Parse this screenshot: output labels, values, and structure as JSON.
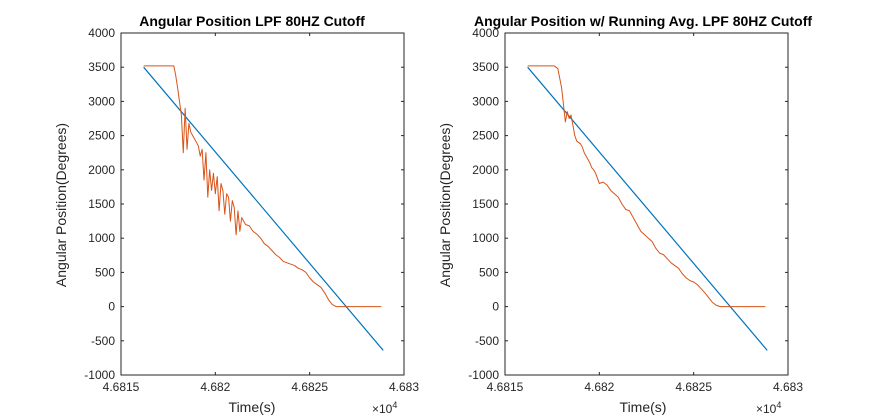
{
  "figure": {
    "colors": {
      "background": "#ffffff",
      "axes": "#262626",
      "series_1": "#0072BD",
      "series_2": "#D95319"
    }
  },
  "chart_data": [
    {
      "type": "line",
      "title": "Angular Position LPF 80HZ Cutoff",
      "xlabel": "Time(s)",
      "ylabel": "Angular Position(Degrees)",
      "x_exponent_label": "×10",
      "x_exponent_power": "4",
      "xlim": [
        4.6815,
        4.683
      ],
      "ylim": [
        -1000,
        4000
      ],
      "xticks": [
        4.6815,
        4.682,
        4.6825,
        4.683
      ],
      "xtick_labels": [
        "4.6815",
        "4.682",
        "4.6825",
        "4.683"
      ],
      "yticks": [
        -1000,
        -500,
        0,
        500,
        1000,
        1500,
        2000,
        2500,
        3000,
        3500,
        4000
      ],
      "ytick_labels": [
        "-1000",
        "-500",
        "0",
        "500",
        "1000",
        "1500",
        "2000",
        "2500",
        "3000",
        "3500",
        "4000"
      ],
      "grid": false,
      "series": [
        {
          "color": "#0072BD",
          "x": [
            4.68162,
            4.68289
          ],
          "y": [
            3500,
            -640
          ]
        },
        {
          "color": "#D95319",
          "x": [
            4.68162,
            4.68178,
            4.68179,
            4.6818,
            4.68181,
            4.68182,
            4.68183,
            4.68184,
            4.68185,
            4.68186,
            4.68187,
            4.68188,
            4.68189,
            4.6819,
            4.68191,
            4.68192,
            4.68193,
            4.68194,
            4.68195,
            4.68196,
            4.68197,
            4.68198,
            4.68199,
            4.682,
            4.68201,
            4.68202,
            4.68203,
            4.68204,
            4.68205,
            4.68206,
            4.68207,
            4.68208,
            4.68209,
            4.6821,
            4.68211,
            4.68212,
            4.68213,
            4.68214,
            4.68216,
            4.68218,
            4.6822,
            4.68222,
            4.68224,
            4.68226,
            4.68228,
            4.6823,
            4.68232,
            4.68234,
            4.68236,
            4.68238,
            4.6824,
            4.68242,
            4.68244,
            4.68246,
            4.68248,
            4.6825,
            4.68252,
            4.68254,
            4.68256,
            4.68258,
            4.6826,
            4.68262,
            4.68264,
            4.68266,
            4.68268,
            4.6827,
            4.68288
          ],
          "y": [
            3520,
            3520,
            3380,
            3200,
            3000,
            2800,
            2250,
            2900,
            2300,
            2680,
            2550,
            2500,
            2450,
            2400,
            2350,
            2200,
            2300,
            1850,
            2250,
            1600,
            2000,
            1700,
            1950,
            1650,
            1900,
            1400,
            1800,
            1700,
            1350,
            1650,
            1600,
            1250,
            1550,
            1450,
            1050,
            1400,
            1100,
            1300,
            1200,
            1180,
            1100,
            1060,
            1000,
            920,
            880,
            820,
            760,
            720,
            660,
            640,
            620,
            600,
            560,
            540,
            500,
            420,
            360,
            320,
            280,
            200,
            100,
            30,
            0,
            0,
            0,
            0,
            0
          ]
        }
      ]
    },
    {
      "type": "line",
      "title": "Angular Position w/ Running Avg. LPF 80HZ Cutoff",
      "xlabel": "Time(s)",
      "ylabel": "Angular Position(Degrees)",
      "x_exponent_label": "×10",
      "x_exponent_power": "4",
      "xlim": [
        4.6815,
        4.683
      ],
      "ylim": [
        -1000,
        4000
      ],
      "xticks": [
        4.6815,
        4.682,
        4.6825,
        4.683
      ],
      "xtick_labels": [
        "4.6815",
        "4.682",
        "4.6825",
        "4.683"
      ],
      "yticks": [
        -1000,
        -500,
        0,
        500,
        1000,
        1500,
        2000,
        2500,
        3000,
        3500,
        4000
      ],
      "ytick_labels": [
        "-1000",
        "-500",
        "0",
        "500",
        "1000",
        "1500",
        "2000",
        "2500",
        "3000",
        "3500",
        "4000"
      ],
      "grid": false,
      "series": [
        {
          "color": "#0072BD",
          "x": [
            4.68162,
            4.68289
          ],
          "y": [
            3500,
            -640
          ]
        },
        {
          "color": "#D95319",
          "x": [
            4.68162,
            4.68176,
            4.68178,
            4.6818,
            4.68181,
            4.68182,
            4.68183,
            4.68184,
            4.68185,
            4.68186,
            4.68187,
            4.68188,
            4.68189,
            4.6819,
            4.68191,
            4.68192,
            4.68193,
            4.68194,
            4.68195,
            4.68196,
            4.68197,
            4.68198,
            4.682,
            4.68202,
            4.68204,
            4.68206,
            4.68208,
            4.6821,
            4.68212,
            4.68214,
            4.68216,
            4.68218,
            4.6822,
            4.68222,
            4.68224,
            4.68226,
            4.68228,
            4.6823,
            4.68232,
            4.68234,
            4.68236,
            4.68238,
            4.6824,
            4.68242,
            4.68244,
            4.68246,
            4.68248,
            4.6825,
            4.68252,
            4.68254,
            4.68256,
            4.68258,
            4.6826,
            4.68262,
            4.68264,
            4.68266,
            4.68268,
            4.6827,
            4.68288
          ],
          "y": [
            3520,
            3520,
            3480,
            3200,
            2950,
            2700,
            2850,
            2750,
            2800,
            2650,
            2500,
            2420,
            2400,
            2380,
            2330,
            2250,
            2200,
            2150,
            2100,
            2030,
            2000,
            1950,
            1800,
            1820,
            1780,
            1700,
            1650,
            1600,
            1500,
            1420,
            1400,
            1300,
            1200,
            1100,
            1050,
            1000,
            950,
            850,
            780,
            760,
            700,
            640,
            600,
            560,
            480,
            420,
            380,
            360,
            320,
            260,
            200,
            130,
            60,
            20,
            0,
            0,
            0,
            0,
            0
          ]
        }
      ]
    }
  ]
}
